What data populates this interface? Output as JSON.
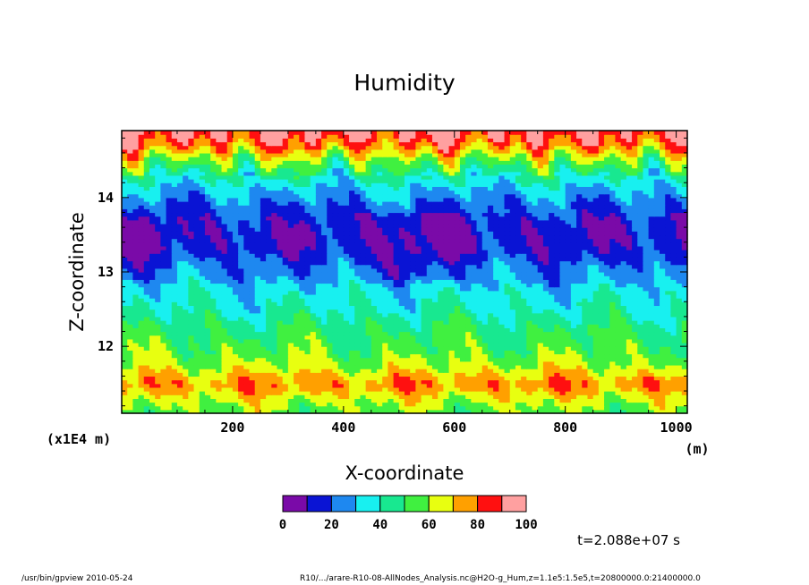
{
  "chart_data": {
    "type": "heatmap",
    "title": "Humidity",
    "xlabel": "X-coordinate",
    "ylabel": "Z-coordinate",
    "x_unit": "(m)",
    "y_unit": "(x1E4 m)",
    "xlim": [
      0,
      1020
    ],
    "ylim": [
      11.1,
      14.9
    ],
    "x_ticks": [
      200,
      400,
      600,
      800,
      1000
    ],
    "y_ticks": [
      12,
      13,
      14
    ],
    "colorbar": {
      "ticks": [
        0,
        20,
        40,
        60,
        80,
        100
      ],
      "levels": [
        0,
        10,
        20,
        30,
        40,
        50,
        60,
        70,
        80,
        90,
        100
      ],
      "colors": [
        "#7a0aa8",
        "#0a14d4",
        "#1e88f0",
        "#18f0f0",
        "#18e890",
        "#40f040",
        "#e8ff10",
        "#ffa000",
        "#ff1010",
        "#ffa0a0"
      ]
    },
    "profile_by_height": [
      {
        "z": 11.15,
        "humidity": 58
      },
      {
        "z": 11.25,
        "humidity": 62
      },
      {
        "z": 11.35,
        "humidity": 68
      },
      {
        "z": 11.45,
        "humidity": 76
      },
      {
        "z": 11.55,
        "humidity": 75
      },
      {
        "z": 11.65,
        "humidity": 68
      },
      {
        "z": 11.75,
        "humidity": 62
      },
      {
        "z": 11.9,
        "humidity": 56
      },
      {
        "z": 12.1,
        "humidity": 52
      },
      {
        "z": 12.3,
        "humidity": 46
      },
      {
        "z": 12.5,
        "humidity": 40
      },
      {
        "z": 12.7,
        "humidity": 36
      },
      {
        "z": 12.9,
        "humidity": 28
      },
      {
        "z": 13.1,
        "humidity": 22
      },
      {
        "z": 13.3,
        "humidity": 14
      },
      {
        "z": 13.5,
        "humidity": 12
      },
      {
        "z": 13.7,
        "humidity": 15
      },
      {
        "z": 13.9,
        "humidity": 22
      },
      {
        "z": 14.1,
        "humidity": 30
      },
      {
        "z": 14.3,
        "humidity": 42
      },
      {
        "z": 14.5,
        "humidity": 58
      },
      {
        "z": 14.7,
        "humidity": 78
      },
      {
        "z": 14.85,
        "humidity": 90
      }
    ],
    "annotation": "t=2.088e+07 s"
  },
  "footer": {
    "left": "/usr/bin/gpview   2010-05-24",
    "right": "R10/.../arare-R10-08-AllNodes_Analysis.nc@H2O-g_Hum,z=1.1e5:1.5e5,t=20800000.0:21400000.0"
  }
}
